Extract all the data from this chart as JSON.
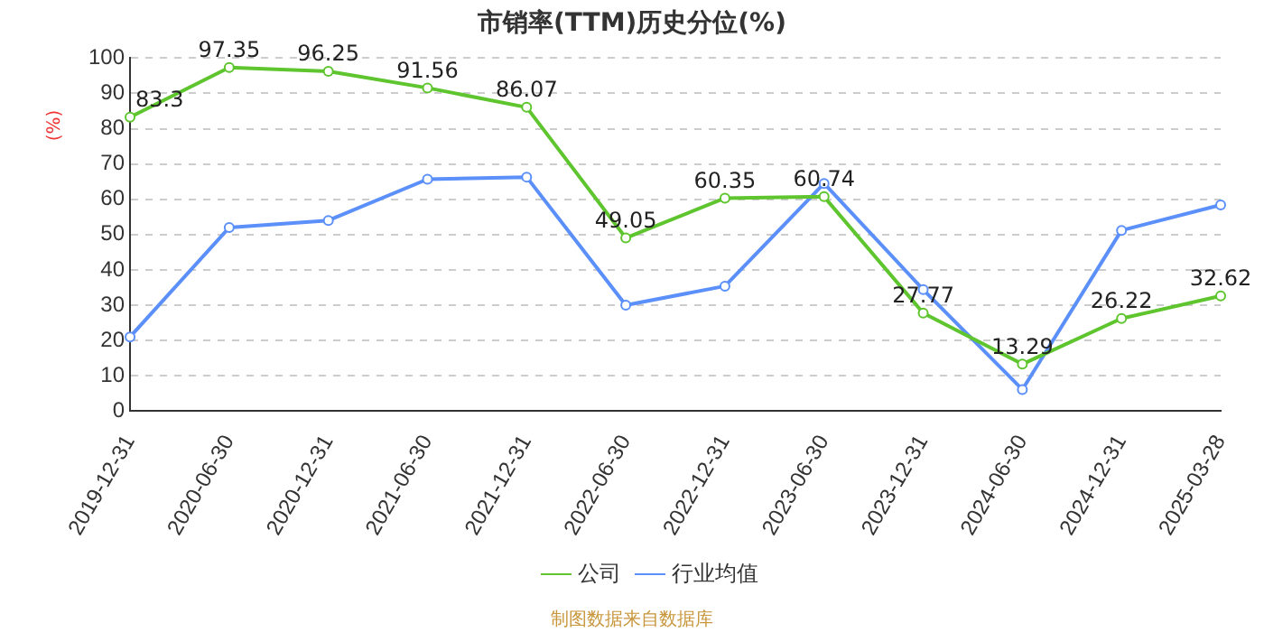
{
  "chart_data": {
    "type": "line",
    "title": "市销率(TTM)历史分位(%)",
    "ylabel": "(%)",
    "categories": [
      "2019-12-31",
      "2020-06-30",
      "2020-12-31",
      "2021-06-30",
      "2021-12-31",
      "2022-06-30",
      "2022-12-31",
      "2023-06-30",
      "2023-12-31",
      "2024-06-30",
      "2024-12-31",
      "2025-03-28"
    ],
    "series": [
      {
        "name": "公司",
        "color": "#5ec52e",
        "values": [
          83.3,
          97.35,
          96.25,
          91.56,
          86.07,
          49.05,
          60.35,
          60.74,
          27.77,
          13.29,
          26.22,
          32.62
        ],
        "value_labels": [
          "83.3",
          "97.35",
          "96.25",
          "91.56",
          "86.07",
          "49.05",
          "60.35",
          "60.74",
          "27.77",
          "13.29",
          "26.22",
          "32.62"
        ]
      },
      {
        "name": "行业均值",
        "color": "#5b8ff9",
        "values": [
          21,
          52,
          54,
          65.7,
          66.3,
          30,
          35.4,
          64.5,
          34.4,
          6.1,
          51.2,
          58.4
        ]
      }
    ],
    "ylim": [
      0,
      100
    ],
    "yticks": [
      0,
      10,
      20,
      30,
      40,
      50,
      60,
      70,
      80,
      90,
      100
    ],
    "grid": "y",
    "legend": "bottom",
    "marker": "circle",
    "line_style": "solid",
    "annotations": [
      "制图数据来自数据库"
    ]
  }
}
